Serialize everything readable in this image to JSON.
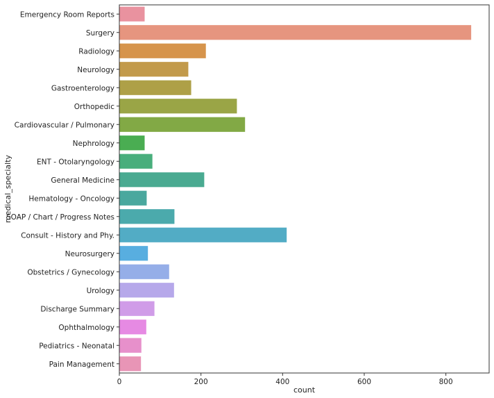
{
  "chart_data": {
    "type": "bar",
    "orientation": "horizontal",
    "xlabel": "count",
    "ylabel": "medical_specialty",
    "xlim": [
      0,
      906
    ],
    "xticks": [
      0,
      200,
      400,
      600,
      800
    ],
    "grid": false,
    "categories": [
      "Emergency Room Reports",
      "Surgery",
      "Radiology",
      "Neurology",
      "Gastroenterology",
      "Orthopedic",
      "Cardiovascular / Pulmonary",
      "Nephrology",
      "ENT - Otolaryngology",
      "General Medicine",
      "Hematology - Oncology",
      "SOAP / Chart / Progress Notes",
      "Consult - History and Phy.",
      "Neurosurgery",
      "Obstetrics / Gynecology",
      "Urology",
      "Discharge Summary",
      "Ophthalmology",
      "Pediatrics - Neonatal",
      "Pain Management"
    ],
    "values": [
      62,
      862,
      212,
      169,
      176,
      288,
      308,
      62,
      81,
      208,
      67,
      135,
      410,
      70,
      122,
      134,
      86,
      66,
      54,
      53
    ],
    "colors": [
      "#e9929f",
      "#e6957f",
      "#d6944c",
      "#c29a4b",
      "#aea047",
      "#9aa546",
      "#82a945",
      "#4aad52",
      "#49ae7c",
      "#4aaa91",
      "#4aa89e",
      "#4baaac",
      "#52acc5",
      "#58aee0",
      "#95aee8",
      "#b6a8ea",
      "#d09ce8",
      "#e68ae3",
      "#e790cb",
      "#e895b6"
    ]
  }
}
